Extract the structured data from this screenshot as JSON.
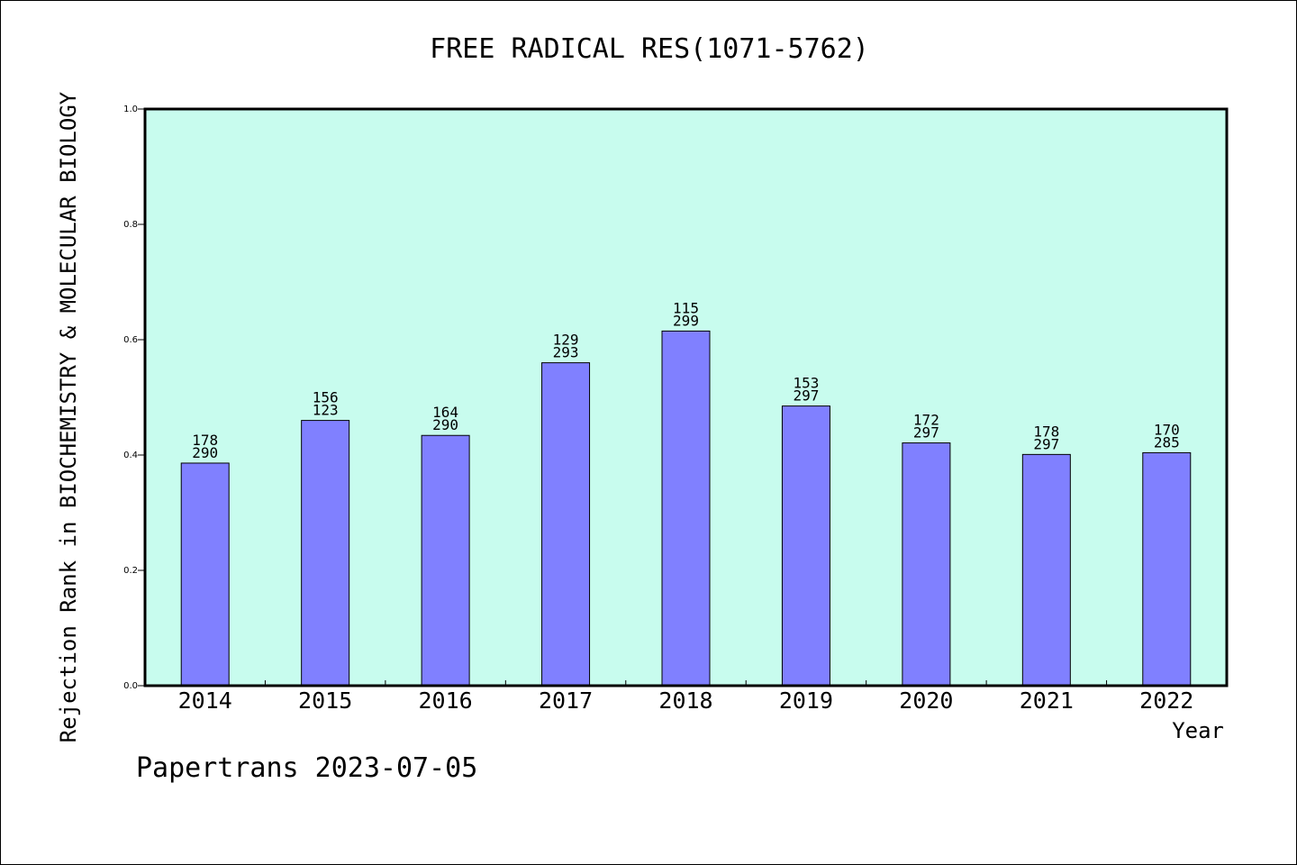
{
  "chart_data": {
    "type": "bar",
    "title": "FREE RADICAL RES(1071-5762)",
    "xlabel": "Year",
    "ylabel": "Rejection Rank in BIOCHEMISTRY & MOLECULAR BIOLOGY",
    "ylim": [
      0.0,
      1.0
    ],
    "yticks": [
      "0.0",
      "0.2",
      "0.4",
      "0.6",
      "0.8",
      "1.0"
    ],
    "grid": false,
    "legend": "none",
    "categories": [
      "2014",
      "2015",
      "2016",
      "2017",
      "2018",
      "2019",
      "2020",
      "2021",
      "2022"
    ],
    "values": [
      0.386,
      0.46,
      0.434,
      0.56,
      0.615,
      0.485,
      0.421,
      0.401,
      0.404
    ],
    "labels_top": [
      "178",
      "156",
      "164",
      "129",
      "115",
      "153",
      "172",
      "178",
      "170"
    ],
    "labels_bottom": [
      "290",
      "123",
      "290",
      "293",
      "299",
      "297",
      "297",
      "297",
      "285"
    ],
    "colors": {
      "bar": "#8080ff",
      "plot_background": "#c8fcee",
      "axis": "#000000"
    }
  },
  "footer": {
    "watermark": "Papertrans 2023-07-05"
  }
}
